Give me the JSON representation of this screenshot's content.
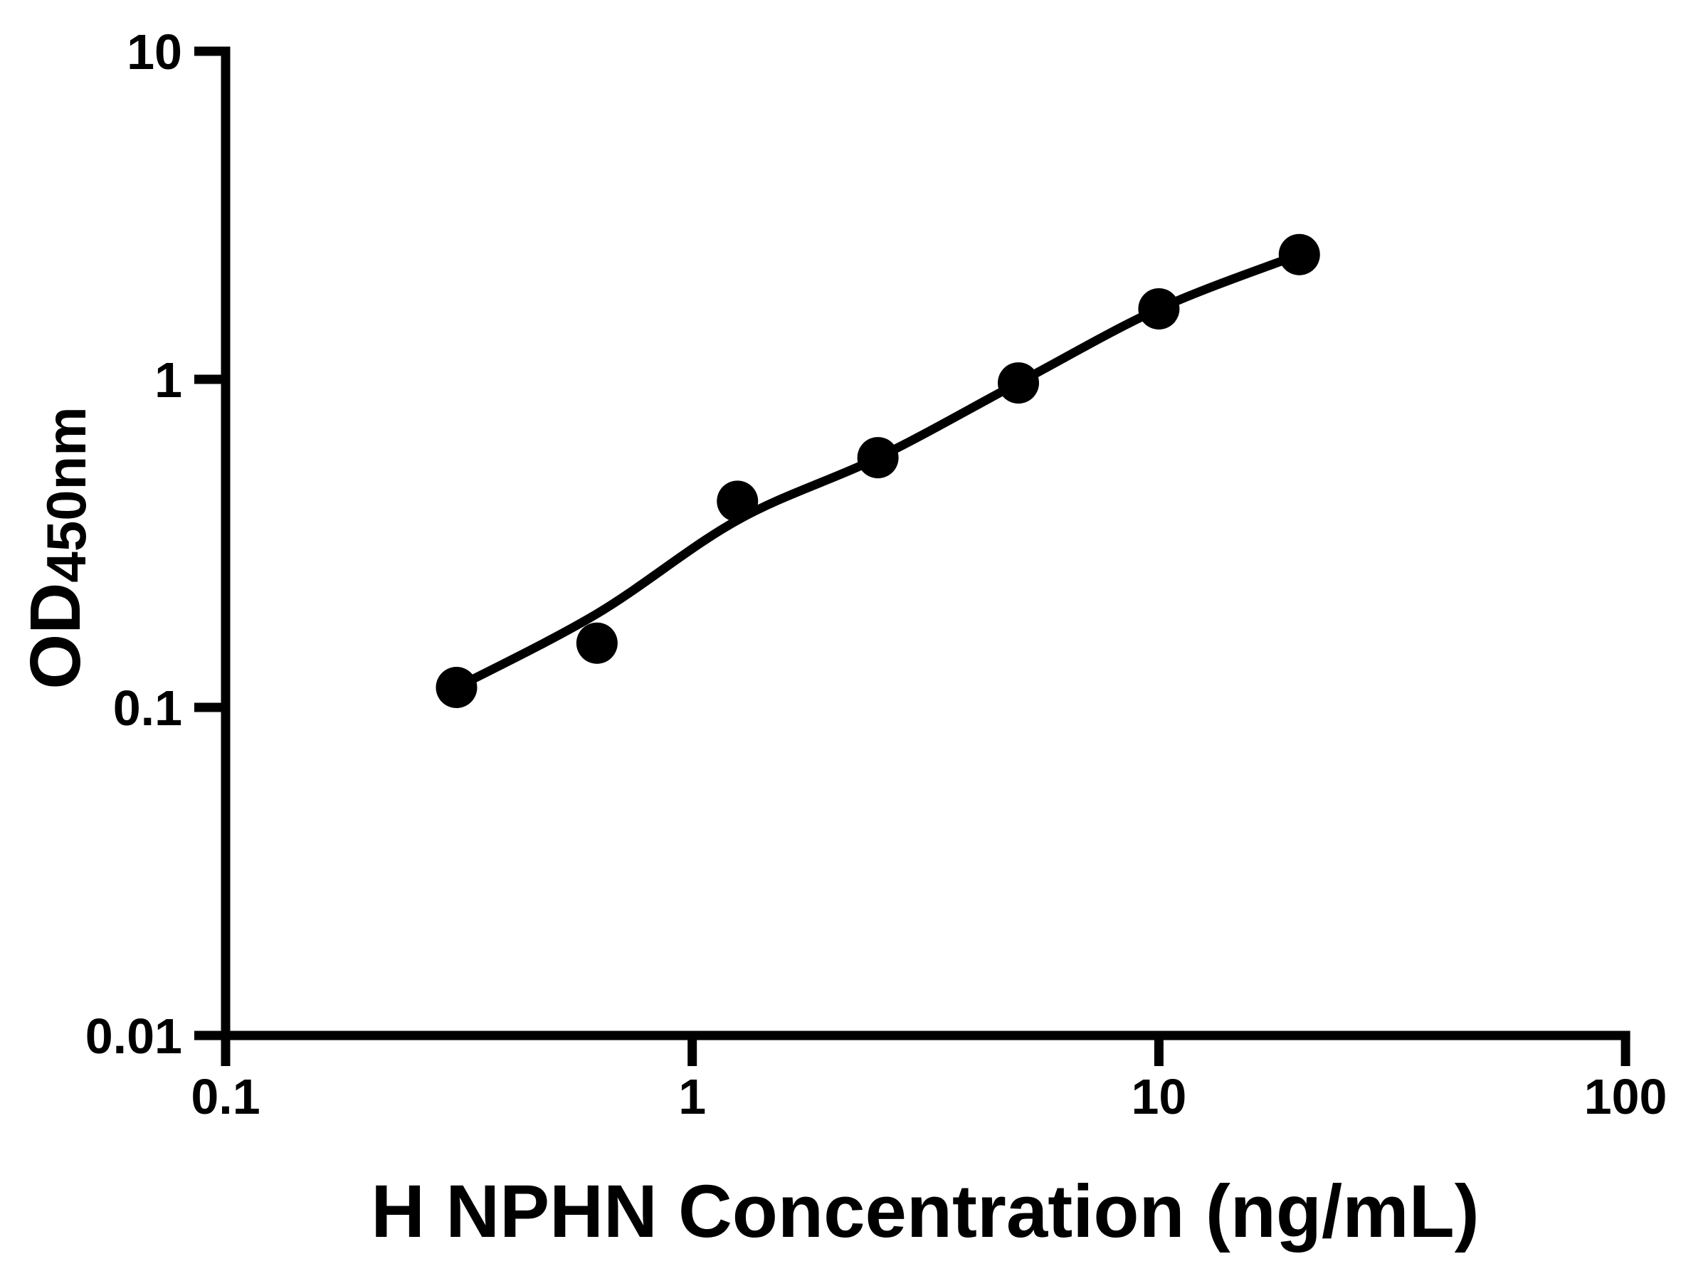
{
  "figure": {
    "background": "#ffffff",
    "ink_color": "#000000"
  },
  "chart_data": {
    "type": "scatter",
    "title": "",
    "xlabel": "H NPHN Concentration (ng/mL)",
    "ylabel_main": "OD",
    "ylabel_sub": "450nm",
    "x_scale": "log",
    "y_scale": "log",
    "xlim": [
      0.1,
      100
    ],
    "ylim": [
      0.01,
      10
    ],
    "grid": false,
    "legend_position": "none",
    "x_ticks": [
      {
        "value": 0.1,
        "label": "0.1"
      },
      {
        "value": 1,
        "label": "1"
      },
      {
        "value": 10,
        "label": "10"
      },
      {
        "value": 100,
        "label": "100"
      }
    ],
    "y_ticks": [
      {
        "value": 0.01,
        "label": "0.01"
      },
      {
        "value": 0.1,
        "label": "0.1"
      },
      {
        "value": 1,
        "label": "1"
      },
      {
        "value": 10,
        "label": "10"
      }
    ],
    "series": [
      {
        "marker": "filled-circle",
        "color": "#000000",
        "points": [
          {
            "concentration_ng_ml": 0.3125,
            "od450": 0.115
          },
          {
            "concentration_ng_ml": 0.625,
            "od450": 0.157
          },
          {
            "concentration_ng_ml": 1.25,
            "od450": 0.425
          },
          {
            "concentration_ng_ml": 2.5,
            "od450": 0.577
          },
          {
            "concentration_ng_ml": 5,
            "od450": 0.975
          },
          {
            "concentration_ng_ml": 10,
            "od450": 1.64
          },
          {
            "concentration_ng_ml": 20,
            "od450": 2.4
          }
        ]
      }
    ],
    "fit_curve": {
      "color": "#000000",
      "points": [
        {
          "concentration_ng_ml": 0.3125,
          "od450": 0.115
        },
        {
          "concentration_ng_ml": 0.625,
          "od450": 0.193
        },
        {
          "concentration_ng_ml": 1.25,
          "od450": 0.372
        },
        {
          "concentration_ng_ml": 2.5,
          "od450": 0.577
        },
        {
          "concentration_ng_ml": 5,
          "od450": 0.976
        },
        {
          "concentration_ng_ml": 10,
          "od450": 1.64
        },
        {
          "concentration_ng_ml": 20,
          "od450": 2.4
        }
      ]
    }
  }
}
